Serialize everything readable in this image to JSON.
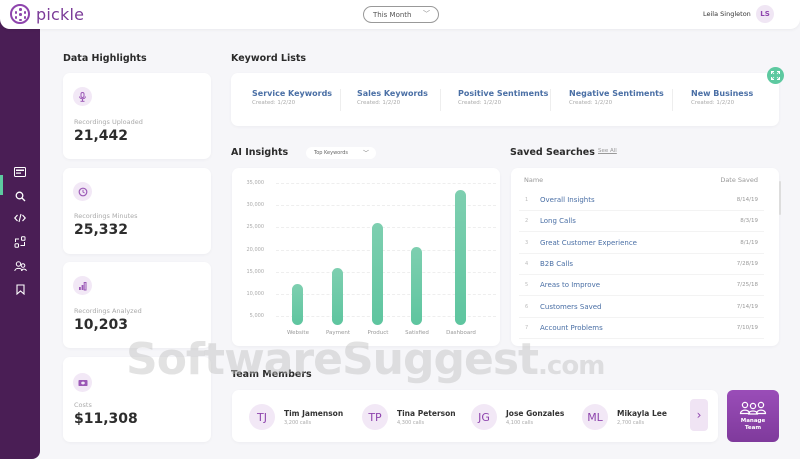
{
  "app": {
    "name": "pickle"
  },
  "header": {
    "period_selector": {
      "value": "This Month"
    },
    "user": {
      "name": "Leila Singleton",
      "initials": "LS"
    }
  },
  "sidebar": {
    "items": [
      {
        "icon": "dashboard-card-icon",
        "active": true
      },
      {
        "icon": "search-icon",
        "active": false
      },
      {
        "icon": "code-icon",
        "active": false
      },
      {
        "icon": "workflow-icon",
        "active": false
      },
      {
        "icon": "users-icon",
        "active": false
      },
      {
        "icon": "bookmark-icon",
        "active": false
      }
    ],
    "active_color": "#5dc9a0",
    "bg_color": "#4a1e55"
  },
  "data_highlights": {
    "title": "Data Highlights",
    "cards": [
      {
        "icon": "microphone-icon",
        "label": "Recordings Uploaded",
        "value": "21,442"
      },
      {
        "icon": "clock-icon",
        "label": "Recordings Minutes",
        "value": "25,332"
      },
      {
        "icon": "bar-chart-icon",
        "label": "Recordings Analyzed",
        "value": "10,203"
      },
      {
        "icon": "money-icon",
        "label": "Costs",
        "value": "$11,308"
      }
    ]
  },
  "keyword_lists": {
    "title": "Keyword Lists",
    "items": [
      {
        "name": "Service Keywords",
        "created": "Created: 1/2/20"
      },
      {
        "name": "Sales Keywords",
        "created": "Created: 1/2/20"
      },
      {
        "name": "Positive Sentiments",
        "created": "Created: 1/2/20"
      },
      {
        "name": "Negative Sentiments",
        "created": "Created: 1/2/20"
      },
      {
        "name": "New Business",
        "created": "Created: 1/2/20"
      }
    ]
  },
  "ai_insights": {
    "title": "AI Insights",
    "dropdown": {
      "value": "Top Keywords"
    }
  },
  "chart_data": {
    "type": "bar",
    "title": "AI Insights",
    "categories": [
      "Website",
      "Payment",
      "Product",
      "Satisfied",
      "Dashboard"
    ],
    "values": [
      12200,
      15800,
      26000,
      20600,
      33400
    ],
    "yticks": [
      "5,000",
      "10,000",
      "15,000",
      "20,000",
      "25,000",
      "30,000",
      "35,000"
    ],
    "xlabel": "",
    "ylabel": "",
    "ylim": [
      0,
      35000
    ],
    "grid": true,
    "bar_color": "#6ccaa6"
  },
  "saved_searches": {
    "title": "Saved Searches",
    "see_all": "See All",
    "columns": [
      "Name",
      "Date Saved"
    ],
    "rows": [
      {
        "num": "1",
        "name": "Overall Insights",
        "date": "8/14/19"
      },
      {
        "num": "2",
        "name": "Long Calls",
        "date": "8/3/19"
      },
      {
        "num": "3",
        "name": "Great Customer Experience",
        "date": "8/1/19"
      },
      {
        "num": "4",
        "name": "B2B Calls",
        "date": "7/28/19"
      },
      {
        "num": "5",
        "name": "Areas to Improve",
        "date": "7/25/18"
      },
      {
        "num": "6",
        "name": "Customers Saved",
        "date": "7/14/19"
      },
      {
        "num": "7",
        "name": "Account Problems",
        "date": "7/10/19"
      }
    ]
  },
  "team_members": {
    "title": "Team Members",
    "members": [
      {
        "initials": "TJ",
        "name": "Tim Jamenson",
        "calls": "3,200 calls"
      },
      {
        "initials": "TP",
        "name": "Tina Peterson",
        "calls": "4,300 calls"
      },
      {
        "initials": "JG",
        "name": "Jose Gonzales",
        "calls": "4,100 calls"
      },
      {
        "initials": "ML",
        "name": "Mikayla Lee",
        "calls": "2,700 calls"
      }
    ],
    "next_label": "›",
    "manage_label": "Manage\nTeam"
  },
  "watermark": {
    "text": "SoftwareSuggest",
    "suffix": ".com"
  }
}
